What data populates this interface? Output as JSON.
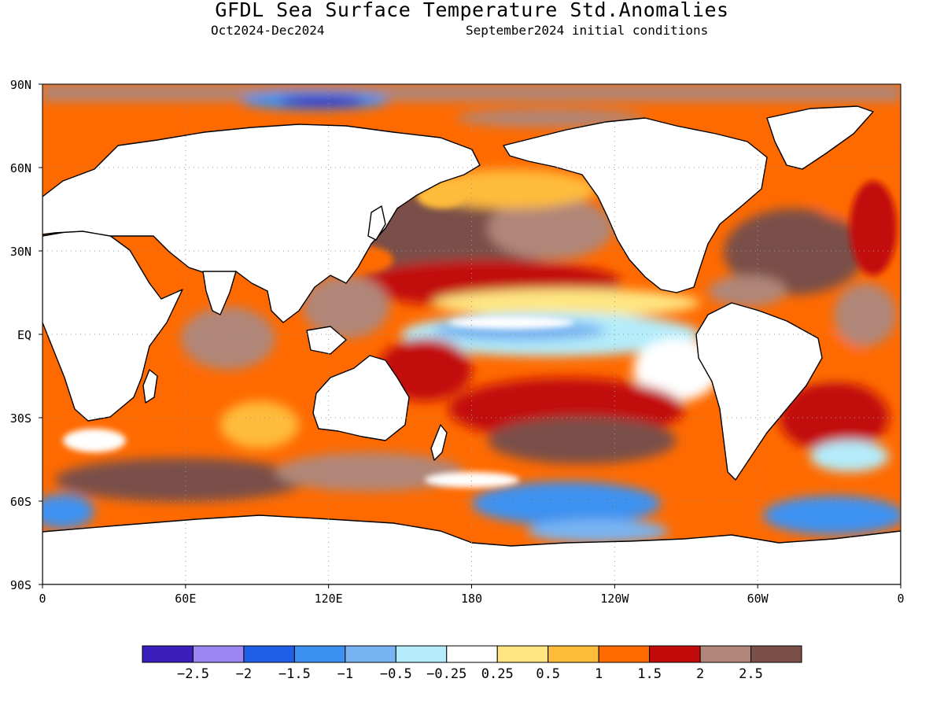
{
  "title": "GFDL Sea Surface Temperature Std.Anomalies",
  "subtitle_period": "Oct2024-Dec2024",
  "subtitle_init": "September2024 initial conditions",
  "map": {
    "projection": "equirectangular",
    "lon_range": [
      0,
      360
    ],
    "lat_range": [
      -90,
      90
    ],
    "grid": "dotted",
    "lat_ticks": [
      {
        "lat": 90,
        "label": "90N"
      },
      {
        "lat": 60,
        "label": "60N"
      },
      {
        "lat": 30,
        "label": "30N"
      },
      {
        "lat": 0,
        "label": "EQ"
      },
      {
        "lat": -30,
        "label": "30S"
      },
      {
        "lat": -60,
        "label": "60S"
      },
      {
        "lat": -90,
        "label": "90S"
      }
    ],
    "lon_ticks": [
      {
        "lon": 0,
        "label": "0"
      },
      {
        "lon": 60,
        "label": "60E"
      },
      {
        "lon": 120,
        "label": "120E"
      },
      {
        "lon": 180,
        "label": "180"
      },
      {
        "lon": 240,
        "label": "120W"
      },
      {
        "lon": 300,
        "label": "60W"
      },
      {
        "lon": 360,
        "label": "0"
      }
    ]
  },
  "colorbar": {
    "colors": [
      "#3b1fbd",
      "#9b86f2",
      "#2060e6",
      "#3c91f0",
      "#78b4f2",
      "#b4ecfa",
      "#ffffff",
      "#ffe682",
      "#ffbb3a",
      "#ff6a00",
      "#c20a0a",
      "#b08678",
      "#7a5048"
    ],
    "labels": [
      "-2.5",
      "-2",
      "-1.5",
      "-1",
      "-0.5",
      "-0.25",
      "0.25",
      "0.5",
      "1",
      "1.5",
      "2",
      "2.5"
    ]
  }
}
